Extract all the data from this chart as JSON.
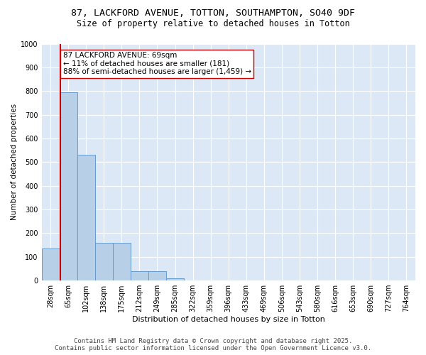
{
  "title1": "87, LACKFORD AVENUE, TOTTON, SOUTHAMPTON, SO40 9DF",
  "title2": "Size of property relative to detached houses in Totton",
  "xlabel": "Distribution of detached houses by size in Totton",
  "ylabel": "Number of detached properties",
  "categories": [
    "28sqm",
    "65sqm",
    "102sqm",
    "138sqm",
    "175sqm",
    "212sqm",
    "249sqm",
    "285sqm",
    "322sqm",
    "359sqm",
    "396sqm",
    "433sqm",
    "469sqm",
    "506sqm",
    "543sqm",
    "580sqm",
    "616sqm",
    "653sqm",
    "690sqm",
    "727sqm",
    "764sqm"
  ],
  "values": [
    135,
    795,
    530,
    160,
    160,
    40,
    40,
    10,
    0,
    0,
    0,
    0,
    0,
    0,
    0,
    0,
    0,
    0,
    0,
    0,
    0
  ],
  "bar_color": "#b8cfe8",
  "bar_edge_color": "#6699cc",
  "vline_color": "#cc0000",
  "vline_x": 0.55,
  "annotation_text": "87 LACKFORD AVENUE: 69sqm\n← 11% of detached houses are smaller (181)\n88% of semi-detached houses are larger (1,459) →",
  "annotation_box_facecolor": "#ffffff",
  "annotation_box_edgecolor": "#cc0000",
  "ylim": [
    0,
    1000
  ],
  "yticks": [
    0,
    100,
    200,
    300,
    400,
    500,
    600,
    700,
    800,
    900,
    1000
  ],
  "bg_color": "#dce8f5",
  "grid_color": "#ffffff",
  "footer1": "Contains HM Land Registry data © Crown copyright and database right 2025.",
  "footer2": "Contains public sector information licensed under the Open Government Licence v3.0.",
  "title_fontsize": 9.5,
  "subtitle_fontsize": 8.5,
  "annot_fontsize": 7.5,
  "axis_fontsize": 7,
  "xlabel_fontsize": 8,
  "ylabel_fontsize": 7.5,
  "footer_fontsize": 6.5
}
